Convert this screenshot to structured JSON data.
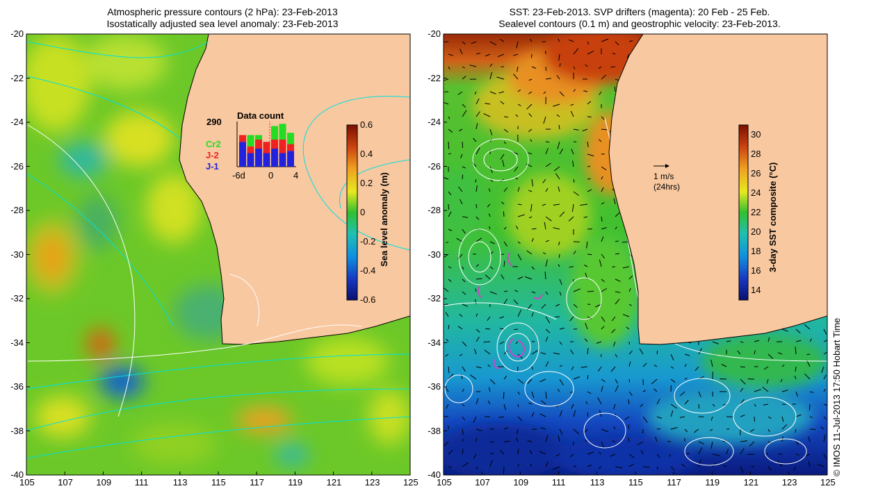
{
  "left_panel": {
    "title_line1": "Atmospheric pressure contours (2 hPa): 23-Feb-2013",
    "title_line2": "Isostatically adjusted sea level anomaly: 23-Feb-2013",
    "x_ticks": [
      "105",
      "107",
      "109",
      "111",
      "113",
      "115",
      "117",
      "119",
      "121",
      "123",
      "125"
    ],
    "y_ticks": [
      "-20",
      "-22",
      "-24",
      "-26",
      "-28",
      "-30",
      "-32",
      "-34",
      "-36",
      "-38",
      "-40"
    ],
    "colorbar": {
      "label": "Sea level anomaly (m)",
      "ticks": [
        "0.6",
        "0.4",
        "0.2",
        "0",
        "-0.2",
        "-0.4",
        "-0.6"
      ],
      "range": [
        -0.6,
        0.6
      ]
    },
    "data_count": {
      "title": "Data count",
      "max_label": "290",
      "legend": [
        {
          "name": "Cr2",
          "color": "#22dd22"
        },
        {
          "name": "J-2",
          "color": "#ee2222"
        },
        {
          "name": "J-1",
          "color": "#2222dd"
        }
      ],
      "x_labels": [
        "-6d",
        "0",
        "4"
      ],
      "bars_j1": [
        0.55,
        0.3,
        0.4,
        0.3,
        0.4,
        0.3,
        0.35
      ],
      "bars_j2": [
        0.15,
        0.15,
        0.2,
        0.25,
        0.2,
        0.3,
        0.15
      ],
      "bars_cr2": [
        0.0,
        0.25,
        0.1,
        0.0,
        0.3,
        0.35,
        0.25
      ]
    }
  },
  "right_panel": {
    "title_line1": "SST: 23-Feb-2013. SVP drifters (magenta): 20 Feb - 25 Feb.",
    "title_line2": "Sealevel contours (0.1 m) and geostrophic velocity: 23-Feb-2013.",
    "x_ticks": [
      "105",
      "107",
      "109",
      "111",
      "113",
      "115",
      "117",
      "119",
      "121",
      "123",
      "125"
    ],
    "y_ticks": [
      "-20",
      "-22",
      "-24",
      "-26",
      "-28",
      "-30",
      "-32",
      "-34",
      "-36",
      "-38",
      "-40"
    ],
    "colorbar": {
      "label": "3-day SST composite (°C)",
      "ticks": [
        "30",
        "28",
        "26",
        "24",
        "22",
        "20",
        "18",
        "16",
        "14"
      ],
      "range": [
        13,
        31
      ]
    },
    "velocity_scale": {
      "line1": "1 m/s",
      "line2": "(24hrs)"
    }
  },
  "copyright": "© IMOS 11-Jul-2013 17:50 Hobart Time",
  "colors": {
    "land": "#f8c8a0",
    "cyan_contour": "#00e0e0",
    "drifter": "#cc44cc"
  }
}
